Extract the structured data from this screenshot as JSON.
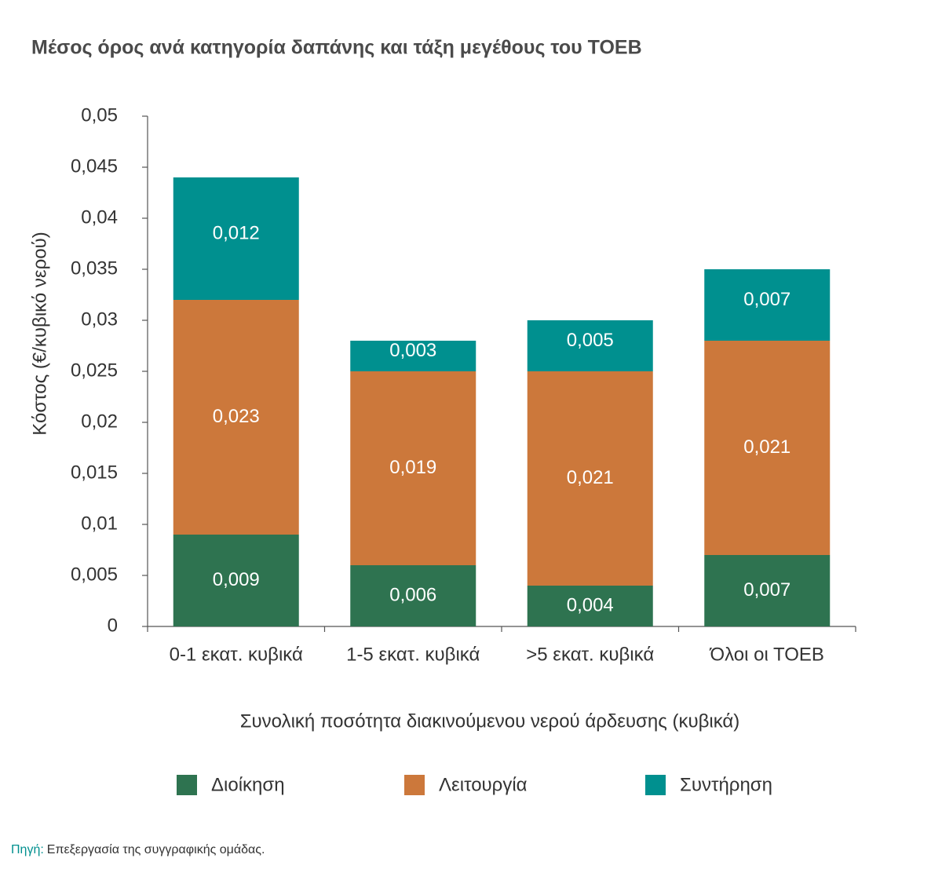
{
  "chart_data": {
    "type": "bar",
    "stacked": true,
    "title": "Μέσος όρος ανά κατηγορία δαπάνης και τάξη μεγέθους του ΤΟΕΒ",
    "x_label": "Συνολική ποσότητα διακινούμενου νερού άρδευσης (κυβικά)",
    "y_label": "Κόστος (€/κυβικό νερού)",
    "categories": [
      "0-1 εκατ. κυβικά",
      "1-5 εκατ. κυβικά",
      ">5 εκατ. κυβικά",
      "Όλοι οι ΤΟΕΒ"
    ],
    "series": [
      {
        "name": "Διοίκηση",
        "color": "#2e7350",
        "values": [
          0.009,
          0.006,
          0.004,
          0.007
        ],
        "value_labels": [
          "0,009",
          "0,006",
          "0,004",
          "0,007"
        ]
      },
      {
        "name": "Λειτουργία",
        "color": "#cc783b",
        "values": [
          0.023,
          0.019,
          0.021,
          0.021
        ],
        "value_labels": [
          "0,023",
          "0,019",
          "0,021",
          "0,021"
        ]
      },
      {
        "name": "Συντήρηση",
        "color": "#00908f",
        "values": [
          0.012,
          0.003,
          0.005,
          0.007
        ],
        "value_labels": [
          "0,012",
          "0,003",
          "0,005",
          "0,007"
        ]
      }
    ],
    "ylim": [
      0,
      0.05
    ],
    "yticks": [
      0,
      {
        "value": 0.005,
        "label": "0,005"
      },
      {
        "value": 0.01,
        "label": "0,01"
      },
      {
        "value": 0.015,
        "label": "0,015"
      },
      {
        "value": 0.02,
        "label": "0,02"
      },
      {
        "value": 0.025,
        "label": "0,025"
      },
      {
        "value": 0.03,
        "label": "0,03"
      },
      {
        "value": 0.035,
        "label": "0,035"
      },
      {
        "value": 0.04,
        "label": "0,04"
      },
      {
        "value": 0.045,
        "label": "0,045"
      },
      {
        "value": 0.05,
        "label": "0,05"
      }
    ],
    "grid": false,
    "legend": "bottom"
  },
  "source": {
    "label": "Πηγή:",
    "text": "Επεξεργασία της συγγραφικής ομάδας."
  }
}
